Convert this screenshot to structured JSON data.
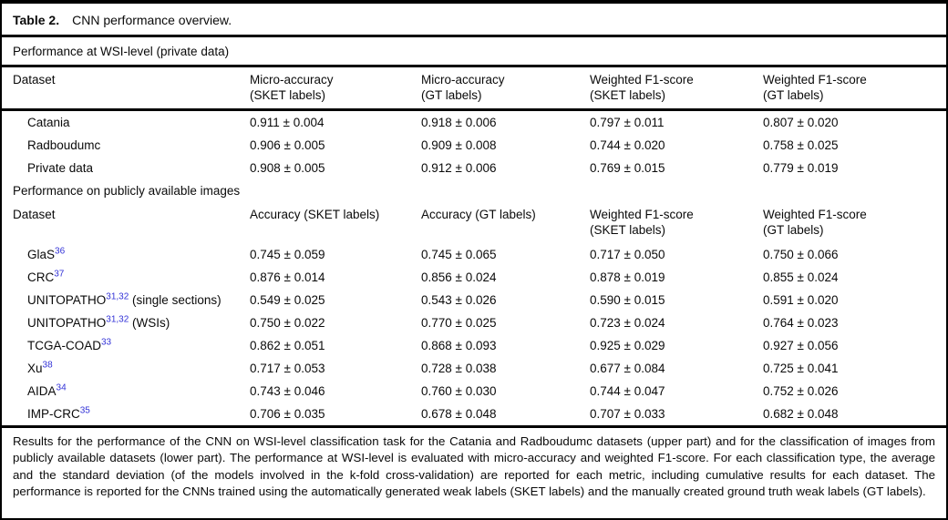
{
  "table": {
    "title_label": "Table 2.",
    "title_text": "CNN performance overview.",
    "section1": {
      "label": "Performance at WSI-level (private data)",
      "headers": [
        {
          "line1": "Dataset",
          "line2": ""
        },
        {
          "line1": "Micro-accuracy",
          "line2": "(SKET labels)"
        },
        {
          "line1": "Micro-accuracy",
          "line2": "(GT labels)"
        },
        {
          "line1": "Weighted F1-score",
          "line2": "(SKET labels)"
        },
        {
          "line1": "Weighted F1-score",
          "line2": "(GT labels)"
        }
      ],
      "rows": [
        {
          "name": "Catania",
          "values": [
            "0.911 ± 0.004",
            "0.918 ± 0.006",
            "0.797 ± 0.011",
            "0.807 ± 0.020"
          ]
        },
        {
          "name": "Radboudumc",
          "values": [
            "0.906 ± 0.005",
            "0.909 ± 0.008",
            "0.744 ± 0.020",
            "0.758 ± 0.025"
          ]
        },
        {
          "name": "Private data",
          "values": [
            "0.908 ± 0.005",
            "0.912 ± 0.006",
            "0.769 ± 0.015",
            "0.779 ± 0.019"
          ]
        }
      ]
    },
    "section2": {
      "label": "Performance on publicly available images",
      "headers": [
        {
          "line1": "Dataset",
          "line2": ""
        },
        {
          "line1": "Accuracy (SKET labels)",
          "line2": ""
        },
        {
          "line1": "Accuracy (GT labels)",
          "line2": ""
        },
        {
          "line1": "Weighted F1-score",
          "line2": "(SKET labels)"
        },
        {
          "line1": "Weighted F1-score",
          "line2": "(GT labels)"
        }
      ],
      "rows": [
        {
          "name": "GlaS",
          "sup": "36",
          "suffix": "",
          "values": [
            "0.745 ± 0.059",
            "0.745 ± 0.065",
            "0.717 ± 0.050",
            "0.750 ± 0.066"
          ]
        },
        {
          "name": "CRC",
          "sup": "37",
          "suffix": "",
          "values": [
            "0.876 ± 0.014",
            "0.856 ± 0.024",
            "0.878 ± 0.019",
            "0.855 ± 0.024"
          ]
        },
        {
          "name": "UNITOPATHO",
          "sup": "31,32",
          "suffix": " (single sections)",
          "values": [
            "0.549 ± 0.025",
            "0.543 ± 0.026",
            "0.590 ± 0.015",
            "0.591 ± 0.020"
          ]
        },
        {
          "name": "UNITOPATHO",
          "sup": "31,32",
          "suffix": " (WSIs)",
          "values": [
            "0.750 ± 0.022",
            "0.770 ± 0.025",
            "0.723 ± 0.024",
            "0.764 ± 0.023"
          ]
        },
        {
          "name": "TCGA-COAD",
          "sup": "33",
          "suffix": "",
          "values": [
            "0.862 ± 0.051",
            "0.868 ± 0.093",
            "0.925 ± 0.029",
            "0.927 ± 0.056"
          ]
        },
        {
          "name": "Xu",
          "sup": "38",
          "suffix": "",
          "values": [
            "0.717 ± 0.053",
            "0.728 ± 0.038",
            "0.677 ± 0.084",
            "0.725 ± 0.041"
          ]
        },
        {
          "name": "AIDA",
          "sup": "34",
          "suffix": "",
          "values": [
            "0.743 ± 0.046",
            "0.760 ± 0.030",
            "0.744 ± 0.047",
            "0.752 ± 0.026"
          ]
        },
        {
          "name": "IMP-CRC",
          "sup": "35",
          "suffix": "",
          "values": [
            "0.706 ± 0.035",
            "0.678 ± 0.048",
            "0.707 ± 0.033",
            "0.682 ± 0.048"
          ]
        }
      ]
    },
    "footnote": "Results for the performance of the CNN on WSI-level classification task for the Catania and Radboudumc datasets (upper part) and for the classification of images from publicly available datasets (lower part). The performance at WSI-level is evaluated with micro-accuracy and weighted F1-score. For each classification type, the average and the standard deviation (of the models involved in the k-fold cross-validation) are reported for each metric, including cumulative results for each dataset. The performance is reported for the CNNs trained using the automatically generated weak labels (SKET labels) and the manually created ground truth weak labels (GT labels)."
  },
  "accent_colors": {
    "citation_blue": "#3232d7",
    "rule_black": "#000000"
  }
}
